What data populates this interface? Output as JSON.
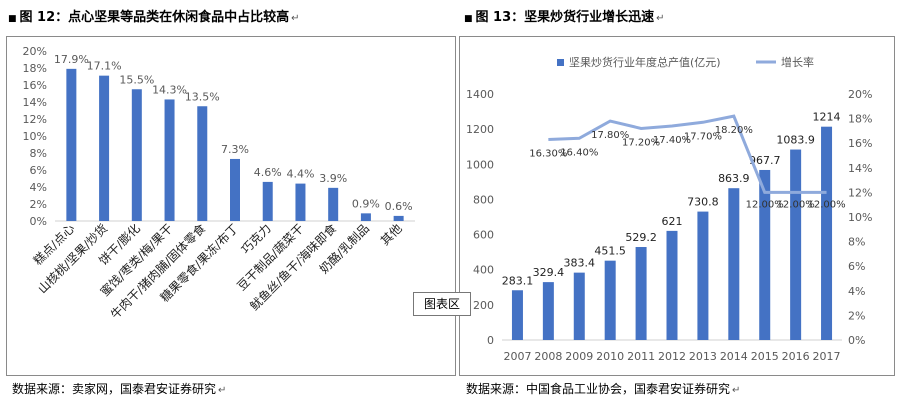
{
  "left": {
    "title_mark": "■",
    "title": "图 12：点心坚果等品类在休闲食品中占比较高",
    "source": "数据来源：卖家网，国泰君安证券研究"
  },
  "right": {
    "title_mark": "■",
    "title": "图 13：坚果炒货行业增长迅速",
    "source": "数据来源：中国食品工业协会，国泰君安证券研究"
  },
  "return_mark": "↵",
  "tooltip_label": "图表区",
  "colors": {
    "bar": "#4472c4",
    "line": "#8faadc",
    "axis": "#d0d0d0",
    "text": "#595959",
    "frame": "#8a8a8a"
  },
  "chart_data": [
    {
      "type": "bar",
      "categories": [
        "糕点/点心",
        "山核桃/坚果/炒货",
        "饼干/膨化",
        "蜜饯/枣类/梅/果干",
        "牛肉干/猪肉脯/固体零食",
        "糖果零食/果冻/布丁",
        "巧克力",
        "豆干制品/蔬菜干",
        "鱿鱼丝/鱼干/海味即食",
        "奶酪/乳制品",
        "其他"
      ],
      "values": [
        17.9,
        17.1,
        15.5,
        14.3,
        13.5,
        7.3,
        4.6,
        4.4,
        3.9,
        0.9,
        0.6
      ],
      "data_labels": [
        "17.9%",
        "17.1%",
        "15.5%",
        "14.3%",
        "13.5%",
        "7.3%",
        "4.6%",
        "4.4%",
        "3.9%",
        "0.9%",
        "0.6%"
      ],
      "ylim": [
        0,
        20
      ],
      "yticks": [
        "0%",
        "2%",
        "4%",
        "6%",
        "8%",
        "10%",
        "12%",
        "14%",
        "16%",
        "18%",
        "20%"
      ],
      "grid": false
    },
    {
      "type": "bar+line",
      "categories": [
        "2007",
        "2008",
        "2009",
        "2010",
        "2011",
        "2012",
        "2013",
        "2014",
        "2015",
        "2016",
        "2017"
      ],
      "series": [
        {
          "name": "坚果炒货行业年度总产值(亿元)",
          "type": "bar",
          "values": [
            283.1,
            329.4,
            383.4,
            451.5,
            529.2,
            621,
            730.8,
            863.9,
            967.7,
            1083.9,
            1214
          ],
          "data_labels": [
            "283.1",
            "329.4",
            "383.4",
            "451.5",
            "529.2",
            "621",
            "730.8",
            "863.9",
            "967.7",
            "1083.9",
            "1214"
          ]
        },
        {
          "name": "增长率",
          "type": "line",
          "axis": "right",
          "values": [
            null,
            16.3,
            16.4,
            17.8,
            17.2,
            17.4,
            17.7,
            18.2,
            12.0,
            12.0,
            12.0
          ],
          "data_labels": [
            "",
            "16.30%",
            "16.40%",
            "17.80%",
            "17.20%",
            "17.40%",
            "17.70%",
            "18.20%",
            "12.00%",
            "12.00%",
            "12.00%"
          ]
        }
      ],
      "ylim": [
        0,
        1400
      ],
      "yticks": [
        "0",
        "200",
        "400",
        "600",
        "800",
        "1000",
        "1200",
        "1400"
      ],
      "y2lim": [
        0,
        20
      ],
      "y2ticks": [
        "0%",
        "2%",
        "4%",
        "6%",
        "8%",
        "10%",
        "12%",
        "14%",
        "16%",
        "18%",
        "20%"
      ],
      "legend": "top",
      "grid": false
    }
  ]
}
